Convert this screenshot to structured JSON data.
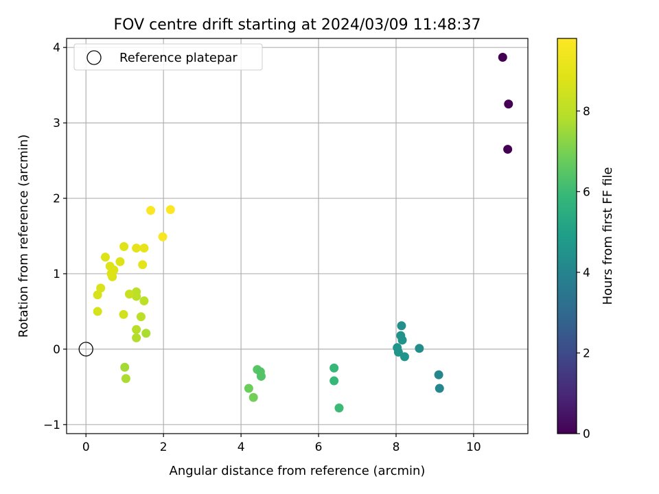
{
  "chart_data": {
    "type": "scatter",
    "title": "FOV centre drift starting at 2024/03/09 11:48:37",
    "xlabel": "Angular distance from reference (arcmin)",
    "ylabel": "Rotation from reference (arcmin)",
    "xlim": [
      -0.5,
      11.4
    ],
    "ylim": [
      -1.12,
      4.12
    ],
    "xticks": [
      "0",
      "2",
      "4",
      "6",
      "8",
      "10"
    ],
    "yticks": [
      "−1",
      "0",
      "1",
      "2",
      "3",
      "4"
    ],
    "grid": true,
    "legend": {
      "placement": "top-left",
      "entries": [
        "Reference platepar"
      ]
    },
    "reference_point": {
      "x": 0,
      "y": 0
    },
    "colorbar": {
      "label": "Hours from first FF file",
      "colormap": "viridis",
      "range": [
        0,
        9.8
      ],
      "ticks": [
        "0",
        "2",
        "4",
        "6",
        "8"
      ]
    },
    "points": [
      {
        "x": 10.75,
        "y": 3.87,
        "c": 0.0
      },
      {
        "x": 10.9,
        "y": 3.25,
        "c": 0.0
      },
      {
        "x": 10.88,
        "y": 2.65,
        "c": 0.0
      },
      {
        "x": 9.1,
        "y": -0.34,
        "c": 4.1
      },
      {
        "x": 9.12,
        "y": -0.52,
        "c": 4.1
      },
      {
        "x": 8.6,
        "y": 0.01,
        "c": 4.3
      },
      {
        "x": 8.14,
        "y": 0.31,
        "c": 4.4
      },
      {
        "x": 8.12,
        "y": 0.18,
        "c": 4.5
      },
      {
        "x": 8.16,
        "y": 0.12,
        "c": 4.5
      },
      {
        "x": 8.03,
        "y": 0.02,
        "c": 4.6
      },
      {
        "x": 8.06,
        "y": -0.04,
        "c": 4.6
      },
      {
        "x": 8.22,
        "y": -0.1,
        "c": 4.6
      },
      {
        "x": 6.4,
        "y": -0.25,
        "c": 5.9
      },
      {
        "x": 6.4,
        "y": -0.42,
        "c": 5.9
      },
      {
        "x": 6.53,
        "y": -0.78,
        "c": 6.0
      },
      {
        "x": 4.42,
        "y": -0.27,
        "c": 6.5
      },
      {
        "x": 4.5,
        "y": -0.3,
        "c": 6.4
      },
      {
        "x": 4.52,
        "y": -0.36,
        "c": 6.4
      },
      {
        "x": 4.2,
        "y": -0.52,
        "c": 6.8
      },
      {
        "x": 4.32,
        "y": -0.64,
        "c": 6.9
      },
      {
        "x": 1.0,
        "y": -0.24,
        "c": 7.6
      },
      {
        "x": 1.03,
        "y": -0.39,
        "c": 7.7
      },
      {
        "x": 1.55,
        "y": 0.21,
        "c": 7.7
      },
      {
        "x": 1.3,
        "y": 0.15,
        "c": 7.8
      },
      {
        "x": 1.3,
        "y": 0.26,
        "c": 7.9
      },
      {
        "x": 1.42,
        "y": 0.43,
        "c": 8.0
      },
      {
        "x": 1.5,
        "y": 0.64,
        "c": 8.0
      },
      {
        "x": 1.3,
        "y": 0.7,
        "c": 8.0
      },
      {
        "x": 1.3,
        "y": 0.76,
        "c": 8.0
      },
      {
        "x": 1.12,
        "y": 0.73,
        "c": 8.3
      },
      {
        "x": 0.97,
        "y": 0.46,
        "c": 8.5
      },
      {
        "x": 0.3,
        "y": 0.5,
        "c": 8.6
      },
      {
        "x": 0.3,
        "y": 0.72,
        "c": 8.6
      },
      {
        "x": 0.38,
        "y": 0.81,
        "c": 8.7
      },
      {
        "x": 0.68,
        "y": 0.96,
        "c": 8.7
      },
      {
        "x": 0.65,
        "y": 1.0,
        "c": 8.8
      },
      {
        "x": 0.72,
        "y": 1.05,
        "c": 8.8
      },
      {
        "x": 0.62,
        "y": 1.1,
        "c": 8.8
      },
      {
        "x": 0.88,
        "y": 1.16,
        "c": 8.8
      },
      {
        "x": 0.5,
        "y": 1.22,
        "c": 8.8
      },
      {
        "x": 1.46,
        "y": 1.12,
        "c": 9.0
      },
      {
        "x": 0.98,
        "y": 1.36,
        "c": 8.9
      },
      {
        "x": 1.3,
        "y": 1.34,
        "c": 9.0
      },
      {
        "x": 1.5,
        "y": 1.34,
        "c": 9.1
      },
      {
        "x": 1.98,
        "y": 1.49,
        "c": 9.6
      },
      {
        "x": 1.67,
        "y": 1.84,
        "c": 9.7
      },
      {
        "x": 2.18,
        "y": 1.85,
        "c": 9.8
      }
    ]
  }
}
